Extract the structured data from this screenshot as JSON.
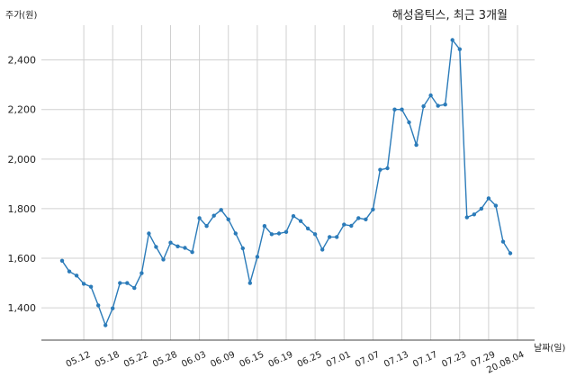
{
  "chart_data": {
    "type": "line",
    "title": "해성옵틱스, 최근 3개월",
    "ylabel": "주가(원)",
    "xlabel": "날짜(일)",
    "ylim": [
      1270,
      2540
    ],
    "yticks": [
      1400,
      1600,
      1800,
      2000,
      2200,
      2400
    ],
    "ytick_labels": [
      "1,400",
      "1,600",
      "1,800",
      "2,000",
      "2,200",
      "2,400"
    ],
    "xtick_labels": [
      "05.12",
      "05.18",
      "05.22",
      "05.28",
      "06.03",
      "06.09",
      "06.15",
      "06.19",
      "06.25",
      "07.01",
      "07.07",
      "07.13",
      "07.17",
      "07.23",
      "07.29",
      "20.08.04"
    ],
    "xtick_index": [
      3,
      7,
      11,
      15,
      19,
      23,
      27,
      31,
      35,
      39,
      43,
      47,
      51,
      55,
      59,
      63
    ],
    "grid": true,
    "color": "#2b7bb9",
    "series": [
      {
        "values": [
          1590,
          1547,
          1530,
          1497,
          1485,
          1410,
          1330,
          1398,
          1500,
          1500,
          1480,
          1540,
          1700,
          1646,
          1595,
          1663,
          1648,
          1642,
          1625,
          1762,
          1730,
          1772,
          1795,
          1757,
          1700,
          1640,
          1500,
          1606,
          1730,
          1697,
          1700,
          1706,
          1770,
          1750,
          1720,
          1697,
          1635,
          1686,
          1686,
          1736,
          1731,
          1762,
          1757,
          1797,
          1957,
          1963,
          2200,
          2200,
          2148,
          2057,
          2213,
          2257,
          2215,
          2220,
          2480,
          2443,
          1765,
          1777,
          1800,
          1842,
          1812,
          1667,
          1620
        ]
      }
    ]
  }
}
